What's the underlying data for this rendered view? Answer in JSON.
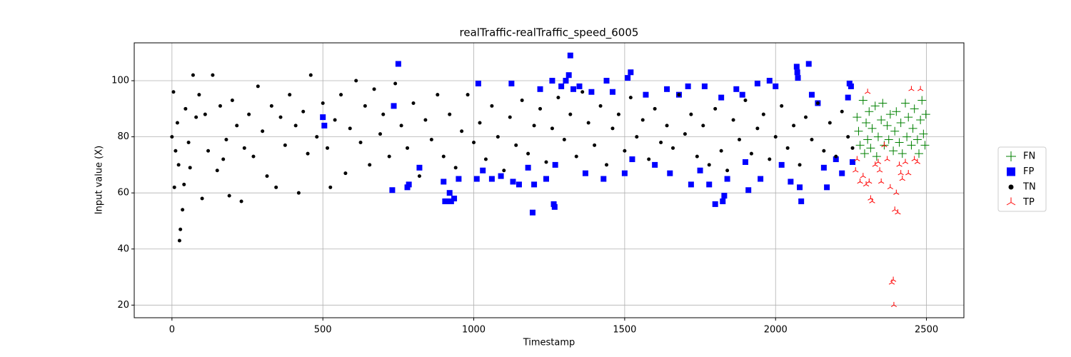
{
  "chart_data": {
    "type": "scatter",
    "title": "realTraffic-realTraffic_speed_6005",
    "x_label": "Timestamp",
    "y_label": "Input value (X)",
    "xlim": [
      -125,
      2624
    ],
    "ylim": [
      15.5,
      113.5
    ],
    "xticks": [
      0,
      500,
      1000,
      1500,
      2000,
      2500
    ],
    "yticks": [
      20,
      40,
      60,
      80,
      100
    ],
    "grid": true,
    "legend": "outside right",
    "series": [
      {
        "name": "FN",
        "color": "#008000",
        "marker": "plus",
        "x": [
          2270,
          2275,
          2280,
          2290,
          2295,
          2300,
          2305,
          2310,
          2315,
          2320,
          2330,
          2335,
          2340,
          2350,
          2355,
          2360,
          2370,
          2375,
          2380,
          2390,
          2395,
          2400,
          2410,
          2415,
          2420,
          2430,
          2435,
          2440,
          2450,
          2455,
          2460,
          2470,
          2475,
          2480,
          2485,
          2490,
          2495,
          2498
        ],
        "values": [
          87,
          82,
          77,
          93,
          74,
          85,
          79,
          89,
          76,
          83,
          91,
          73,
          80,
          86,
          92,
          77,
          84,
          79,
          88,
          75,
          82,
          89,
          78,
          85,
          74,
          92,
          80,
          87,
          77,
          83,
          90,
          79,
          74,
          86,
          93,
          81,
          77,
          88
        ]
      },
      {
        "name": "FP",
        "color": "#0000ff",
        "marker": "square",
        "x": [
          500,
          505,
          730,
          735,
          750,
          780,
          785,
          820,
          900,
          905,
          910,
          920,
          925,
          935,
          950,
          1010,
          1015,
          1030,
          1060,
          1090,
          1130,
          1125,
          1150,
          1180,
          1195,
          1200,
          1220,
          1240,
          1260,
          1265,
          1268,
          1270,
          1290,
          1305,
          1315,
          1320,
          1330,
          1350,
          1370,
          1390,
          1430,
          1440,
          1460,
          1500,
          1510,
          1520,
          1525,
          1570,
          1600,
          1640,
          1650,
          1680,
          1710,
          1720,
          1750,
          1765,
          1780,
          1800,
          1820,
          1825,
          1830,
          1840,
          1870,
          1890,
          1900,
          1910,
          1940,
          1950,
          1980,
          2000,
          2020,
          2050,
          2070,
          2072,
          2074,
          2080,
          2085,
          2110,
          2120,
          2140,
          2160,
          2170,
          2200,
          2220,
          2240,
          2245,
          2250,
          2255
        ],
        "values": [
          87,
          84,
          61,
          91,
          106,
          62,
          63,
          69,
          64,
          57,
          57,
          60,
          57,
          58,
          65,
          65,
          99,
          68,
          65,
          66,
          64,
          99,
          63,
          69,
          53,
          63,
          97,
          65,
          100,
          56,
          55,
          70,
          98,
          100,
          102,
          109,
          97,
          98,
          67,
          96,
          65,
          100,
          96,
          67,
          101,
          103,
          72,
          95,
          70,
          97,
          67,
          95,
          98,
          63,
          68,
          98,
          63,
          56,
          94,
          57,
          59,
          65,
          97,
          95,
          71,
          61,
          99,
          65,
          100,
          98,
          70,
          64,
          105,
          103,
          101,
          62,
          57,
          106,
          95,
          92,
          69,
          62,
          72,
          67,
          94,
          99,
          98,
          71
        ]
      },
      {
        "name": "TN",
        "color": "#000000",
        "marker": "circle",
        "x": [
          0,
          5,
          8,
          12,
          18,
          22,
          25,
          28,
          35,
          40,
          45,
          55,
          60,
          70,
          80,
          90,
          100,
          110,
          120,
          135,
          150,
          160,
          170,
          180,
          190,
          200,
          215,
          230,
          240,
          255,
          270,
          285,
          300,
          315,
          330,
          345,
          360,
          375,
          390,
          410,
          420,
          435,
          450,
          460,
          480,
          500,
          515,
          525,
          540,
          560,
          575,
          590,
          610,
          625,
          640,
          655,
          670,
          690,
          700,
          720,
          740,
          760,
          780,
          800,
          820,
          840,
          860,
          880,
          900,
          920,
          940,
          960,
          980,
          1000,
          1020,
          1040,
          1060,
          1080,
          1100,
          1120,
          1140,
          1160,
          1180,
          1200,
          1220,
          1240,
          1260,
          1280,
          1300,
          1320,
          1340,
          1360,
          1380,
          1400,
          1420,
          1440,
          1460,
          1480,
          1500,
          1520,
          1540,
          1560,
          1580,
          1600,
          1620,
          1640,
          1660,
          1680,
          1700,
          1720,
          1740,
          1760,
          1780,
          1800,
          1820,
          1840,
          1860,
          1880,
          1900,
          1920,
          1940,
          1960,
          1980,
          2000,
          2020,
          2040,
          2060,
          2080,
          2100,
          2120,
          2140,
          2160,
          2180,
          2200,
          2220,
          2240,
          2255
        ],
        "values": [
          80,
          96,
          62,
          75,
          85,
          70,
          43,
          47,
          54,
          63,
          90,
          78,
          69,
          102,
          87,
          95,
          58,
          88,
          75,
          102,
          68,
          91,
          72,
          79,
          59,
          93,
          84,
          57,
          76,
          88,
          73,
          98,
          82,
          66,
          91,
          62,
          87,
          77,
          95,
          84,
          60,
          89,
          74,
          102,
          80,
          92,
          76,
          62,
          86,
          95,
          67,
          83,
          100,
          78,
          91,
          70,
          97,
          81,
          88,
          73,
          99,
          84,
          76,
          92,
          66,
          86,
          79,
          95,
          73,
          88,
          69,
          82,
          95,
          78,
          85,
          72,
          91,
          80,
          68,
          87,
          77,
          93,
          74,
          84,
          90,
          71,
          83,
          94,
          79,
          88,
          73,
          96,
          85,
          77,
          91,
          70,
          83,
          88,
          75,
          94,
          80,
          86,
          72,
          90,
          78,
          84,
          76,
          95,
          81,
          88,
          73,
          84,
          70,
          90,
          75,
          68,
          86,
          79,
          93,
          74,
          83,
          88,
          72,
          80,
          91,
          76,
          84,
          70,
          87,
          79,
          92,
          75,
          85,
          73,
          89,
          80,
          76
        ]
      },
      {
        "name": "TP",
        "color": "#ff0000",
        "marker": "tri_up",
        "x": [
          2265,
          2270,
          2280,
          2290,
          2300,
          2305,
          2310,
          2315,
          2320,
          2330,
          2340,
          2345,
          2350,
          2360,
          2370,
          2380,
          2385,
          2390,
          2392,
          2395,
          2400,
          2405,
          2410,
          2415,
          2420,
          2430,
          2440,
          2450,
          2460,
          2470,
          2480
        ],
        "values": [
          68,
          72,
          64,
          66,
          63,
          96,
          64,
          58,
          57,
          70,
          71,
          68,
          64,
          77,
          72,
          62,
          28,
          29,
          20,
          54,
          60,
          53,
          70,
          67,
          65,
          71,
          67,
          97,
          72,
          71,
          97
        ]
      }
    ]
  }
}
